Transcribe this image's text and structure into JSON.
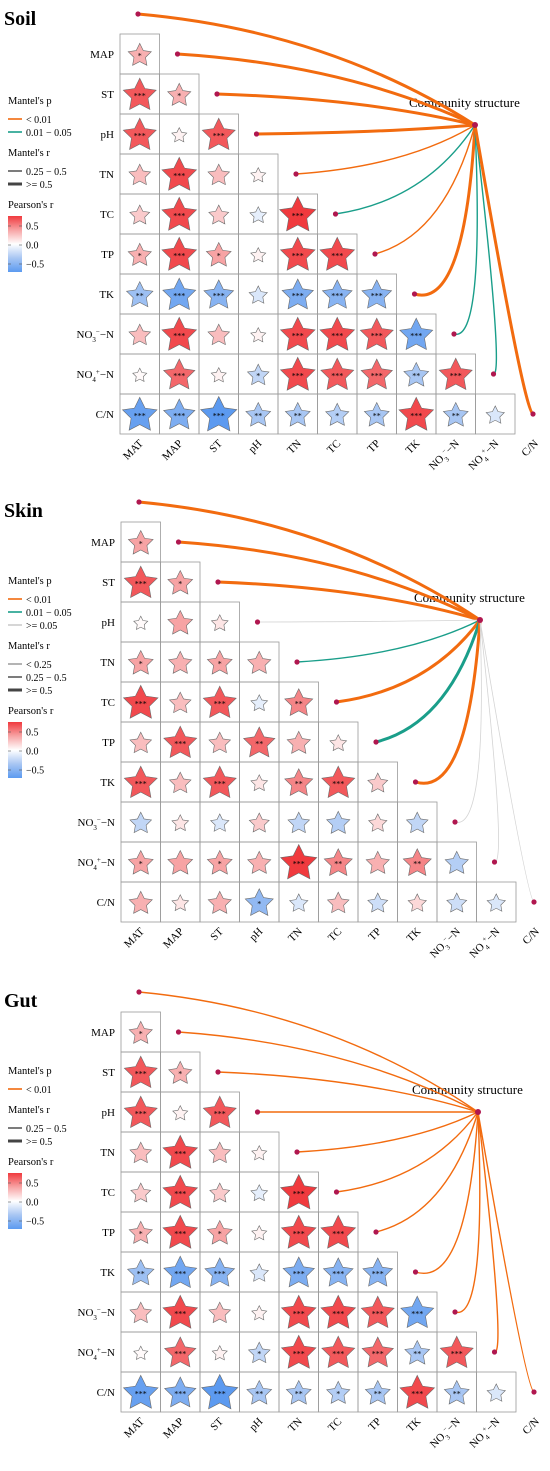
{
  "chart_data": [
    {
      "type": "heatmap",
      "title": "Soil",
      "variables": [
        "MAT",
        "MAP",
        "ST",
        "pH",
        "TN",
        "TC",
        "TP",
        "TK",
        "NO3-N",
        "NO4+-N",
        "C/N"
      ],
      "community_label": "Community structure",
      "legend": {
        "mantel_p_title": "Mantel's p",
        "mantel_p_items": [
          {
            "label": "< 0.01",
            "color": "#f26b0f"
          },
          {
            "label": "0.01 − 0.05",
            "color": "#1a9e8a"
          }
        ],
        "mantel_r_title": "Mantel's r",
        "mantel_r_items": [
          {
            "label": "0.25 − 0.5"
          },
          {
            "label": ">= 0.5"
          }
        ],
        "pearson_title": "Pearson's r",
        "pearson_ticks": [
          "0.5",
          "0.0",
          "−0.5"
        ]
      },
      "correlations": [
        {
          "row": "MAP",
          "values": [
            [
              0.3,
              "*"
            ]
          ]
        },
        {
          "row": "ST",
          "values": [
            [
              0.6,
              "***"
            ],
            [
              0.3,
              "*"
            ]
          ]
        },
        {
          "row": "pH",
          "values": [
            [
              0.6,
              "***"
            ],
            [
              0.05,
              ""
            ],
            [
              0.6,
              "***"
            ]
          ]
        },
        {
          "row": "TN",
          "values": [
            [
              0.25,
              ""
            ],
            [
              0.65,
              "***"
            ],
            [
              0.25,
              ""
            ],
            [
              0.05,
              ""
            ]
          ]
        },
        {
          "row": "TC",
          "values": [
            [
              0.2,
              ""
            ],
            [
              0.65,
              "***"
            ],
            [
              0.2,
              ""
            ],
            [
              -0.1,
              ""
            ],
            [
              0.7,
              "***"
            ]
          ]
        },
        {
          "row": "TP",
          "values": [
            [
              0.3,
              "*"
            ],
            [
              0.65,
              "***"
            ],
            [
              0.35,
              "*"
            ],
            [
              0.05,
              ""
            ],
            [
              0.65,
              "***"
            ],
            [
              0.65,
              "***"
            ]
          ]
        },
        {
          "row": "TK",
          "values": [
            [
              -0.4,
              "**"
            ],
            [
              -0.6,
              "***"
            ],
            [
              -0.5,
              "***"
            ],
            [
              -0.15,
              ""
            ],
            [
              -0.55,
              "***"
            ],
            [
              -0.5,
              "***"
            ],
            [
              -0.5,
              "***"
            ]
          ]
        },
        {
          "row": "NO3-N",
          "values": [
            [
              0.25,
              ""
            ],
            [
              0.65,
              "***"
            ],
            [
              0.25,
              ""
            ],
            [
              0.05,
              ""
            ],
            [
              0.65,
              "***"
            ],
            [
              0.65,
              "***"
            ],
            [
              0.6,
              "***"
            ],
            [
              -0.6,
              "***"
            ]
          ]
        },
        {
          "row": "NO4+-N",
          "values": [
            [
              0.02,
              ""
            ],
            [
              0.55,
              "***"
            ],
            [
              0.05,
              ""
            ],
            [
              -0.25,
              "*"
            ],
            [
              0.65,
              "***"
            ],
            [
              0.6,
              "***"
            ],
            [
              0.55,
              "***"
            ],
            [
              -0.35,
              "**"
            ],
            [
              0.6,
              "***"
            ]
          ]
        },
        {
          "row": "C/N",
          "values": [
            [
              -0.65,
              "***"
            ],
            [
              -0.55,
              "***"
            ],
            [
              -0.7,
              "***"
            ],
            [
              -0.35,
              "**"
            ],
            [
              -0.35,
              "**"
            ],
            [
              -0.3,
              "*"
            ],
            [
              -0.35,
              "**"
            ],
            [
              0.65,
              "***"
            ],
            [
              -0.35,
              "**"
            ],
            [
              -0.15,
              ""
            ]
          ]
        }
      ],
      "mantel_links": [
        {
          "variable": "MAT",
          "p": "< 0.01",
          "r": ">= 0.5"
        },
        {
          "variable": "MAP",
          "p": "< 0.01",
          "r": ">= 0.5"
        },
        {
          "variable": "ST",
          "p": "< 0.01",
          "r": ">= 0.5"
        },
        {
          "variable": "pH",
          "p": "< 0.01",
          "r": ">= 0.5"
        },
        {
          "variable": "TN",
          "p": "< 0.01",
          "r": "0.25 − 0.5"
        },
        {
          "variable": "TC",
          "p": "0.01 − 0.05",
          "r": "0.25 − 0.5"
        },
        {
          "variable": "TP",
          "p": "< 0.01",
          "r": "0.25 − 0.5"
        },
        {
          "variable": "TK",
          "p": "< 0.01",
          "r": ">= 0.5"
        },
        {
          "variable": "NO3-N",
          "p": "0.01 − 0.05",
          "r": "0.25 − 0.5"
        },
        {
          "variable": "NO4+-N",
          "p": "0.01 − 0.05",
          "r": "0.25 − 0.5"
        },
        {
          "variable": "C/N",
          "p": "< 0.01",
          "r": ">= 0.5"
        }
      ]
    },
    {
      "type": "heatmap",
      "title": "Skin",
      "variables": [
        "MAT",
        "MAP",
        "ST",
        "pH",
        "TN",
        "TC",
        "TP",
        "TK",
        "NO3-N",
        "NO4+-N",
        "C/N"
      ],
      "community_label": "Community structure",
      "legend": {
        "mantel_p_title": "Mantel's p",
        "mantel_p_items": [
          {
            "label": "< 0.01",
            "color": "#f26b0f"
          },
          {
            "label": "0.01 − 0.05",
            "color": "#1a9e8a"
          },
          {
            "label": ">= 0.05",
            "color": "#cccccc"
          }
        ],
        "mantel_r_title": "Mantel's r",
        "mantel_r_items": [
          {
            "label": "< 0.25"
          },
          {
            "label": "0.25 − 0.5"
          },
          {
            "label": ">= 0.5"
          }
        ],
        "pearson_title": "Pearson's r",
        "pearson_ticks": [
          "0.5",
          "0.0",
          "−0.5"
        ]
      },
      "correlations": [
        {
          "row": "MAP",
          "values": [
            [
              0.35,
              "*"
            ]
          ]
        },
        {
          "row": "ST",
          "values": [
            [
              0.6,
              "***"
            ],
            [
              0.35,
              "*"
            ]
          ]
        },
        {
          "row": "pH",
          "values": [
            [
              0.02,
              ""
            ],
            [
              0.35,
              ""
            ],
            [
              0.1,
              ""
            ]
          ]
        },
        {
          "row": "TN",
          "values": [
            [
              0.35,
              "*"
            ],
            [
              0.3,
              ""
            ],
            [
              0.35,
              "*"
            ],
            [
              0.3,
              ""
            ]
          ]
        },
        {
          "row": "TC",
          "values": [
            [
              0.65,
              "***"
            ],
            [
              0.25,
              ""
            ],
            [
              0.6,
              "***"
            ],
            [
              -0.1,
              ""
            ],
            [
              0.45,
              "**"
            ]
          ]
        },
        {
          "row": "TP",
          "values": [
            [
              0.25,
              ""
            ],
            [
              0.6,
              "***"
            ],
            [
              0.25,
              ""
            ],
            [
              0.55,
              "**"
            ],
            [
              0.3,
              ""
            ],
            [
              0.1,
              ""
            ]
          ]
        },
        {
          "row": "TK",
          "values": [
            [
              0.6,
              "***"
            ],
            [
              0.25,
              ""
            ],
            [
              0.6,
              "***"
            ],
            [
              0.1,
              ""
            ],
            [
              0.45,
              "**"
            ],
            [
              0.6,
              "***"
            ],
            [
              0.2,
              ""
            ]
          ]
        },
        {
          "row": "NO3-N",
          "values": [
            [
              -0.25,
              ""
            ],
            [
              0.1,
              ""
            ],
            [
              -0.15,
              ""
            ],
            [
              0.2,
              ""
            ],
            [
              -0.25,
              ""
            ],
            [
              -0.3,
              ""
            ],
            [
              0.15,
              ""
            ],
            [
              -0.25,
              ""
            ]
          ]
        },
        {
          "row": "NO4+-N",
          "values": [
            [
              0.35,
              "*"
            ],
            [
              0.35,
              ""
            ],
            [
              0.35,
              "*"
            ],
            [
              0.3,
              ""
            ],
            [
              0.75,
              "***"
            ],
            [
              0.45,
              "**"
            ],
            [
              0.3,
              ""
            ],
            [
              0.45,
              "**"
            ],
            [
              -0.3,
              ""
            ]
          ]
        },
        {
          "row": "C/N",
          "values": [
            [
              0.3,
              ""
            ],
            [
              0.1,
              ""
            ],
            [
              0.3,
              ""
            ],
            [
              -0.45,
              "*"
            ],
            [
              -0.15,
              ""
            ],
            [
              0.25,
              ""
            ],
            [
              -0.2,
              ""
            ],
            [
              0.15,
              ""
            ],
            [
              -0.2,
              ""
            ],
            [
              -0.15,
              ""
            ]
          ]
        }
      ],
      "mantel_links": [
        {
          "variable": "MAT",
          "p": "< 0.01",
          "r": ">= 0.5"
        },
        {
          "variable": "MAP",
          "p": "< 0.01",
          "r": ">= 0.5"
        },
        {
          "variable": "ST",
          "p": "< 0.01",
          "r": ">= 0.5"
        },
        {
          "variable": "pH",
          "p": ">= 0.05",
          "r": "< 0.25"
        },
        {
          "variable": "TN",
          "p": "0.01 − 0.05",
          "r": "0.25 − 0.5"
        },
        {
          "variable": "TC",
          "p": "< 0.01",
          "r": ">= 0.5"
        },
        {
          "variable": "TP",
          "p": "0.01 − 0.05",
          "r": ">= 0.5"
        },
        {
          "variable": "TK",
          "p": "< 0.01",
          "r": ">= 0.5"
        },
        {
          "variable": "NO3-N",
          "p": ">= 0.05",
          "r": "< 0.25"
        },
        {
          "variable": "NO4+-N",
          "p": ">= 0.05",
          "r": "< 0.25"
        },
        {
          "variable": "C/N",
          "p": ">= 0.05",
          "r": "< 0.25"
        }
      ]
    },
    {
      "type": "heatmap",
      "title": "Gut",
      "variables": [
        "MAT",
        "MAP",
        "ST",
        "pH",
        "TN",
        "TC",
        "TP",
        "TK",
        "NO3-N",
        "NO4+-N",
        "C/N"
      ],
      "community_label": "Community structure",
      "legend": {
        "mantel_p_title": "Mantel's p",
        "mantel_p_items": [
          {
            "label": "< 0.01",
            "color": "#f26b0f"
          }
        ],
        "mantel_r_title": "Mantel's r",
        "mantel_r_items": [
          {
            "label": "0.25 − 0.5"
          },
          {
            "label": ">= 0.5"
          }
        ],
        "pearson_title": "Pearson's r",
        "pearson_ticks": [
          "0.5",
          "0.0",
          "−0.5"
        ]
      },
      "correlations": [
        {
          "row": "MAP",
          "values": [
            [
              0.3,
              "*"
            ]
          ]
        },
        {
          "row": "ST",
          "values": [
            [
              0.6,
              "***"
            ],
            [
              0.3,
              "*"
            ]
          ]
        },
        {
          "row": "pH",
          "values": [
            [
              0.6,
              "***"
            ],
            [
              0.05,
              ""
            ],
            [
              0.6,
              "***"
            ]
          ]
        },
        {
          "row": "TN",
          "values": [
            [
              0.25,
              ""
            ],
            [
              0.65,
              "***"
            ],
            [
              0.25,
              ""
            ],
            [
              0.05,
              ""
            ]
          ]
        },
        {
          "row": "TC",
          "values": [
            [
              0.2,
              ""
            ],
            [
              0.65,
              "***"
            ],
            [
              0.2,
              ""
            ],
            [
              -0.1,
              ""
            ],
            [
              0.7,
              "***"
            ]
          ]
        },
        {
          "row": "TP",
          "values": [
            [
              0.3,
              "*"
            ],
            [
              0.65,
              "***"
            ],
            [
              0.35,
              "*"
            ],
            [
              0.05,
              ""
            ],
            [
              0.65,
              "***"
            ],
            [
              0.65,
              "***"
            ]
          ]
        },
        {
          "row": "TK",
          "values": [
            [
              -0.4,
              "**"
            ],
            [
              -0.6,
              "***"
            ],
            [
              -0.5,
              "***"
            ],
            [
              -0.15,
              ""
            ],
            [
              -0.55,
              "***"
            ],
            [
              -0.5,
              "***"
            ],
            [
              -0.5,
              "***"
            ]
          ]
        },
        {
          "row": "NO3-N",
          "values": [
            [
              0.25,
              ""
            ],
            [
              0.65,
              "***"
            ],
            [
              0.25,
              ""
            ],
            [
              0.05,
              ""
            ],
            [
              0.65,
              "***"
            ],
            [
              0.65,
              "***"
            ],
            [
              0.6,
              "***"
            ],
            [
              -0.6,
              "***"
            ]
          ]
        },
        {
          "row": "NO4+-N",
          "values": [
            [
              0.02,
              ""
            ],
            [
              0.55,
              "***"
            ],
            [
              0.05,
              ""
            ],
            [
              -0.25,
              "*"
            ],
            [
              0.65,
              "***"
            ],
            [
              0.6,
              "***"
            ],
            [
              0.55,
              "***"
            ],
            [
              -0.35,
              "**"
            ],
            [
              0.6,
              "***"
            ]
          ]
        },
        {
          "row": "C/N",
          "values": [
            [
              -0.65,
              "***"
            ],
            [
              -0.55,
              "***"
            ],
            [
              -0.7,
              "***"
            ],
            [
              -0.35,
              "**"
            ],
            [
              -0.35,
              "**"
            ],
            [
              -0.3,
              "*"
            ],
            [
              -0.35,
              "**"
            ],
            [
              0.65,
              "***"
            ],
            [
              -0.35,
              "**"
            ],
            [
              -0.15,
              ""
            ]
          ]
        }
      ],
      "mantel_links": [
        {
          "variable": "MAT",
          "p": "< 0.01",
          "r": "0.25 − 0.5"
        },
        {
          "variable": "MAP",
          "p": "< 0.01",
          "r": "0.25 − 0.5"
        },
        {
          "variable": "ST",
          "p": "< 0.01",
          "r": "0.25 − 0.5"
        },
        {
          "variable": "pH",
          "p": "< 0.01",
          "r": "0.25 − 0.5"
        },
        {
          "variable": "TN",
          "p": "< 0.01",
          "r": "0.25 − 0.5"
        },
        {
          "variable": "TC",
          "p": "< 0.01",
          "r": "0.25 − 0.5"
        },
        {
          "variable": "TP",
          "p": "< 0.01",
          "r": "0.25 − 0.5"
        },
        {
          "variable": "TK",
          "p": "< 0.01",
          "r": "0.25 − 0.5"
        },
        {
          "variable": "NO3-N",
          "p": "< 0.01",
          "r": "0.25 − 0.5"
        },
        {
          "variable": "NO4+-N",
          "p": "< 0.01",
          "r": "0.25 − 0.5"
        },
        {
          "variable": "C/N",
          "p": "< 0.01",
          "r": "0.25 − 0.5"
        }
      ]
    }
  ]
}
